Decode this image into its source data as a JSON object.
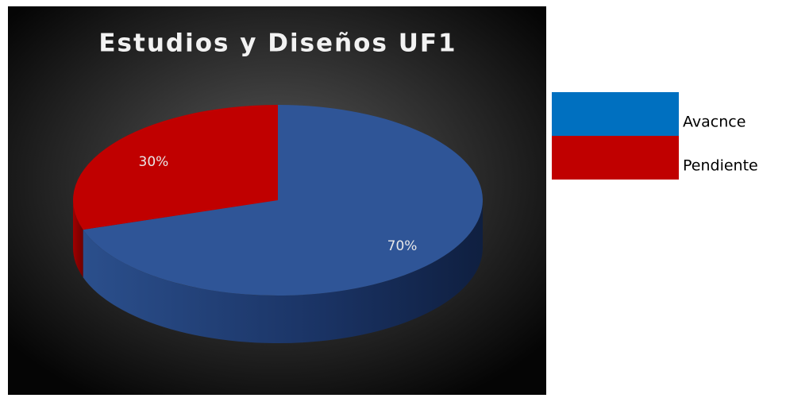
{
  "chart_data": {
    "type": "pie",
    "title": "Estudios y Diseños UF1",
    "categories": [
      "Avacnce",
      "Pendiente"
    ],
    "values": [
      70,
      30
    ],
    "value_labels": [
      "70%",
      "30%"
    ],
    "colors": [
      "#2f5597",
      "#c00000"
    ],
    "legend_colors": [
      "#0070c0",
      "#c00000"
    ]
  }
}
